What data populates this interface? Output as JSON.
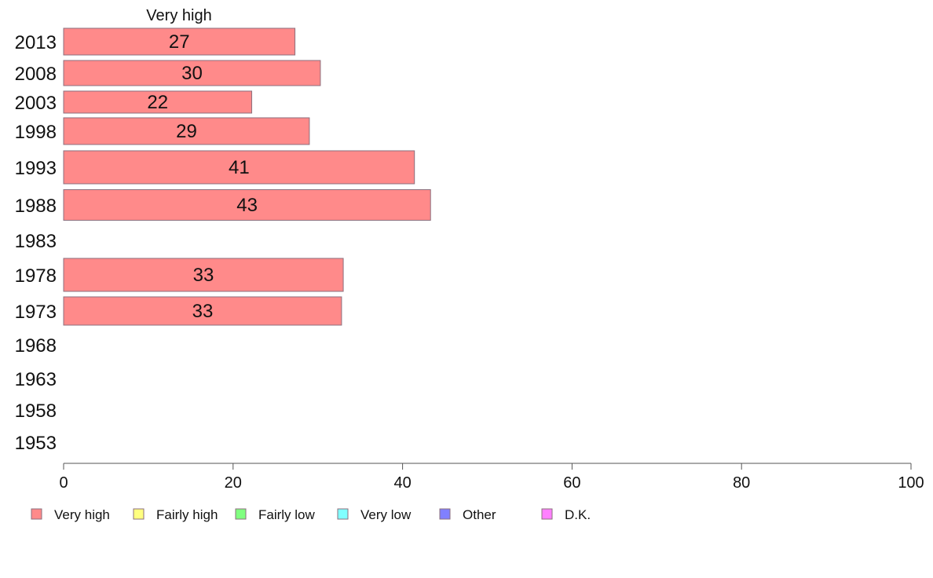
{
  "chart_data": {
    "type": "bar",
    "orientation": "horizontal",
    "stacked": true,
    "title": "",
    "xlabel": "",
    "ylabel": "",
    "xlim": [
      0,
      100
    ],
    "x_ticks": [
      "0",
      "20",
      "40",
      "60",
      "80",
      "100"
    ],
    "categories": [
      "2013",
      "2008",
      "2003",
      "1998",
      "1993",
      "1988",
      "1983",
      "1978",
      "1973",
      "1968",
      "1963",
      "1958",
      "1953"
    ],
    "series_title": "Very high",
    "series": [
      {
        "name": "Very high",
        "color": "#ff8a8a",
        "values": [
          27.3,
          30.3,
          22.2,
          29.0,
          41.4,
          43.3,
          null,
          33.0,
          32.8,
          null,
          null,
          null,
          null
        ],
        "labels": [
          "27",
          "30",
          "22",
          "29",
          "41",
          "43",
          "",
          "33",
          "33",
          "",
          "",
          "",
          ""
        ]
      },
      {
        "name": "Fairly high",
        "color": "#ffff80",
        "values": [
          null,
          null,
          null,
          null,
          null,
          null,
          null,
          null,
          null,
          null,
          null,
          null,
          null
        ],
        "labels": [
          "",
          "",
          "",
          "",
          "",
          "",
          "",
          "",
          "",
          "",
          "",
          "",
          ""
        ]
      },
      {
        "name": "Fairly low",
        "color": "#80ff80",
        "values": [
          null,
          null,
          null,
          null,
          null,
          null,
          null,
          null,
          null,
          null,
          null,
          null,
          null
        ],
        "labels": [
          "",
          "",
          "",
          "",
          "",
          "",
          "",
          "",
          "",
          "",
          "",
          "",
          ""
        ]
      },
      {
        "name": "Very low",
        "color": "#80ffff",
        "values": [
          null,
          null,
          null,
          null,
          null,
          null,
          null,
          null,
          null,
          null,
          null,
          null,
          null
        ],
        "labels": [
          "",
          "",
          "",
          "",
          "",
          "",
          "",
          "",
          "",
          "",
          "",
          "",
          ""
        ]
      },
      {
        "name": "Other",
        "color": "#8080ff",
        "values": [
          null,
          null,
          null,
          null,
          null,
          null,
          null,
          null,
          null,
          null,
          null,
          null,
          null
        ],
        "labels": [
          "",
          "",
          "",
          "",
          "",
          "",
          "",
          "",
          "",
          "",
          "",
          "",
          ""
        ]
      },
      {
        "name": "D.K.",
        "color": "#ff80ff",
        "values": [
          null,
          null,
          null,
          null,
          null,
          null,
          null,
          null,
          null,
          null,
          null,
          null,
          null
        ],
        "labels": [
          "",
          "",
          "",
          "",
          "",
          "",
          "",
          "",
          "",
          "",
          "",
          "",
          ""
        ]
      }
    ],
    "legend_position": "bottom",
    "grid": false
  }
}
